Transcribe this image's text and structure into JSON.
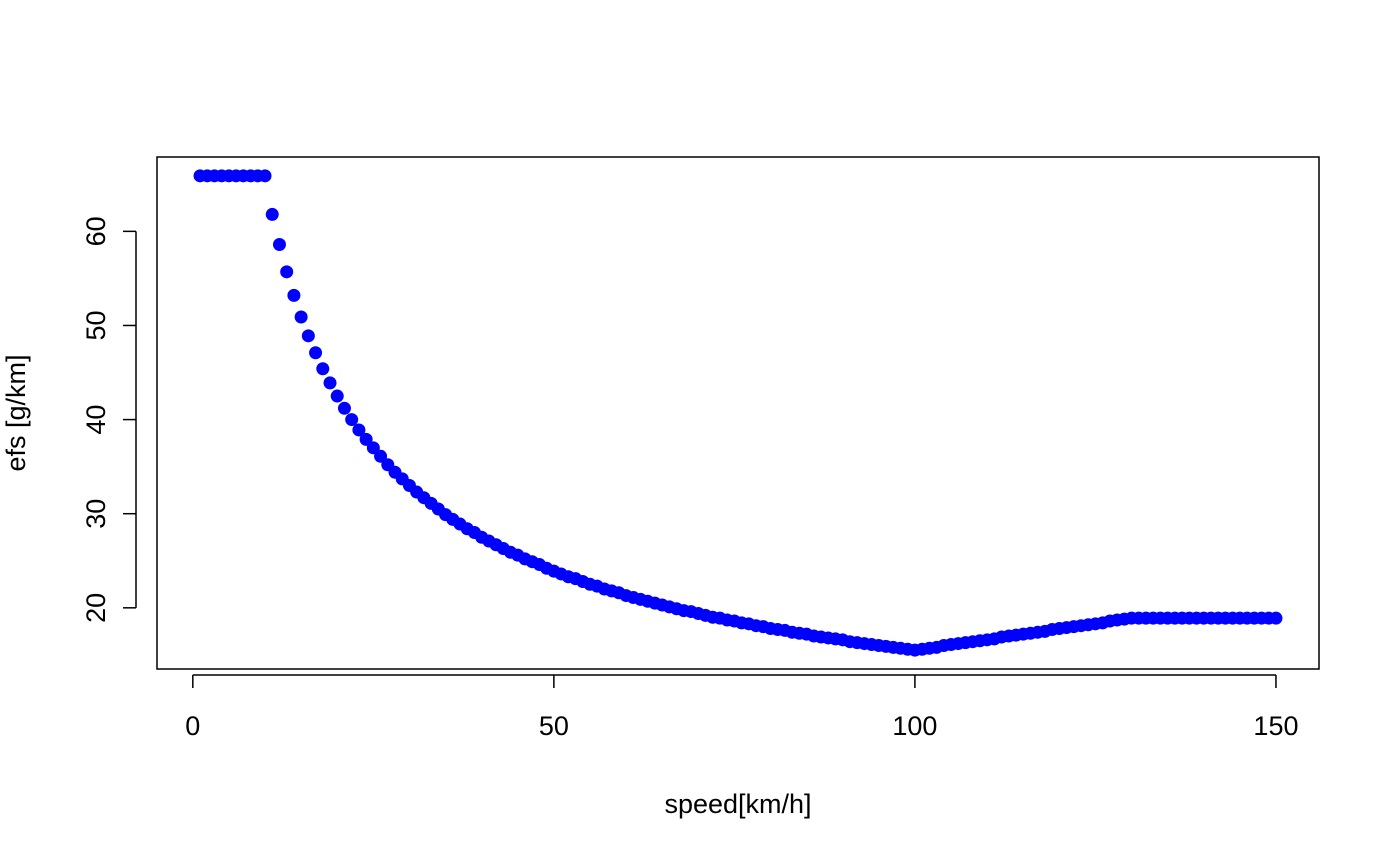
{
  "chart_data": {
    "type": "scatter",
    "x_label": "speed[km/h]",
    "y_label": "efs [g/km]",
    "color": "#0000ff",
    "xlim": [
      -4.96,
      155.96
    ],
    "ylim": [
      13.5,
      67.9
    ],
    "xticks": [
      0,
      50,
      100,
      150
    ],
    "yticks": [
      20,
      30,
      40,
      50,
      60
    ],
    "x": [
      1,
      2,
      3,
      4,
      5,
      6,
      7,
      8,
      9,
      10,
      11,
      12,
      13,
      14,
      15,
      16,
      17,
      18,
      19,
      20,
      21,
      22,
      23,
      24,
      25,
      26,
      27,
      28,
      29,
      30,
      31,
      32,
      33,
      34,
      35,
      36,
      37,
      38,
      39,
      40,
      41,
      42,
      43,
      44,
      45,
      46,
      47,
      48,
      49,
      50,
      51,
      52,
      53,
      54,
      55,
      56,
      57,
      58,
      59,
      60,
      61,
      62,
      63,
      64,
      65,
      66,
      67,
      68,
      69,
      70,
      71,
      72,
      73,
      74,
      75,
      76,
      77,
      78,
      79,
      80,
      81,
      82,
      83,
      84,
      85,
      86,
      87,
      88,
      89,
      90,
      91,
      92,
      93,
      94,
      95,
      96,
      97,
      98,
      99,
      100,
      101,
      102,
      103,
      104,
      105,
      106,
      107,
      108,
      109,
      110,
      111,
      112,
      113,
      114,
      115,
      116,
      117,
      118,
      119,
      120,
      121,
      122,
      123,
      124,
      125,
      126,
      127,
      128,
      129,
      130,
      131,
      132,
      133,
      134,
      135,
      136,
      137,
      138,
      139,
      140,
      141,
      142,
      143,
      144,
      145,
      146,
      147,
      148,
      149,
      150
    ],
    "values": [
      65.9,
      65.9,
      65.9,
      65.9,
      65.9,
      65.9,
      65.9,
      65.9,
      65.9,
      65.9,
      61.8,
      58.6,
      55.7,
      53.2,
      50.9,
      48.9,
      47.1,
      45.4,
      43.9,
      42.5,
      41.2,
      40.0,
      38.9,
      37.9,
      37.0,
      36.1,
      35.2,
      34.4,
      33.7,
      33.0,
      32.3,
      31.7,
      31.1,
      30.5,
      29.9,
      29.4,
      28.9,
      28.4,
      28.0,
      27.5,
      27.1,
      26.7,
      26.3,
      25.9,
      25.6,
      25.2,
      24.9,
      24.6,
      24.2,
      23.9,
      23.6,
      23.3,
      23.1,
      22.8,
      22.5,
      22.3,
      22.0,
      21.8,
      21.6,
      21.3,
      21.1,
      20.9,
      20.7,
      20.5,
      20.3,
      20.1,
      19.9,
      19.7,
      19.6,
      19.4,
      19.2,
      19.0,
      18.9,
      18.7,
      18.6,
      18.4,
      18.3,
      18.1,
      18.0,
      17.8,
      17.7,
      17.6,
      17.4,
      17.3,
      17.2,
      17.0,
      16.9,
      16.8,
      16.7,
      16.6,
      16.4,
      16.3,
      16.2,
      16.1,
      16.0,
      15.9,
      15.8,
      15.7,
      15.6,
      15.5,
      15.6,
      15.7,
      15.8,
      16.0,
      16.1,
      16.2,
      16.3,
      16.4,
      16.5,
      16.6,
      16.7,
      16.9,
      17.0,
      17.1,
      17.2,
      17.3,
      17.4,
      17.5,
      17.7,
      17.8,
      17.9,
      18.0,
      18.1,
      18.2,
      18.3,
      18.4,
      18.6,
      18.7,
      18.8,
      18.9,
      18.9,
      18.9,
      18.9,
      18.9,
      18.9,
      18.9,
      18.9,
      18.9,
      18.9,
      18.9,
      18.9,
      18.9,
      18.9,
      18.9,
      18.9,
      18.9,
      18.9,
      18.9,
      18.9,
      18.9
    ]
  }
}
